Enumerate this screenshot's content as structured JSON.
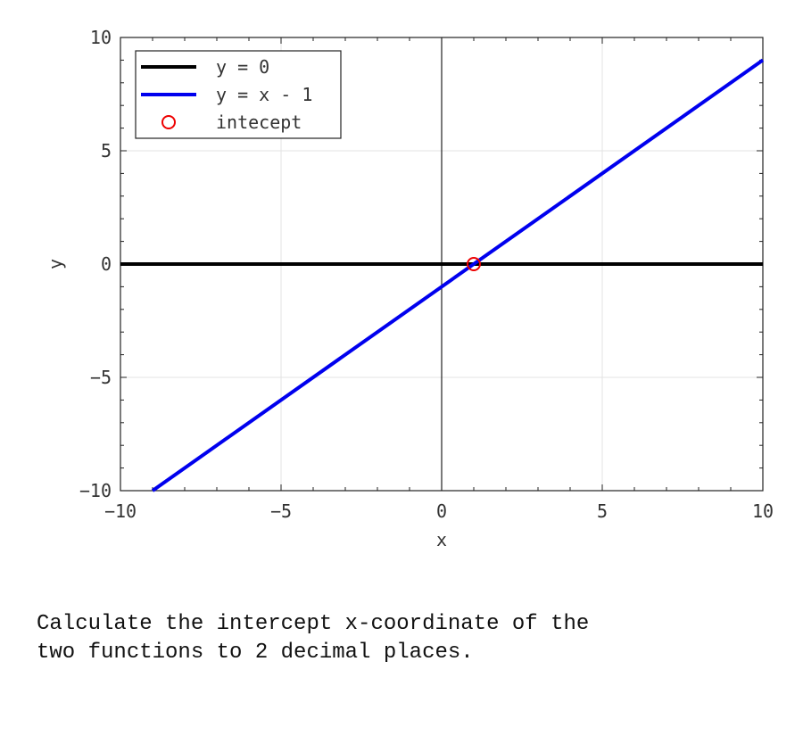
{
  "chart_data": {
    "type": "line",
    "title": "",
    "xlabel": "x",
    "ylabel": "y",
    "xlim": [
      -10,
      10
    ],
    "ylim": [
      -10,
      10
    ],
    "xticks": [
      -10,
      -5,
      0,
      5,
      10
    ],
    "yticks": [
      -10,
      -5,
      0,
      5,
      10
    ],
    "xtick_labels": [
      "−10",
      "−5",
      "0",
      "5",
      "10"
    ],
    "ytick_labels": [
      "−10",
      "−5",
      "0",
      "5",
      "10"
    ],
    "grid": true,
    "legend_position": "top-left",
    "series": [
      {
        "name": "y = 0",
        "color": "#000000",
        "x": [
          -10,
          10
        ],
        "y": [
          0,
          0
        ]
      },
      {
        "name": "y = x - 1",
        "color": "#0000ee",
        "x": [
          -9,
          10
        ],
        "y": [
          -10,
          9
        ]
      }
    ],
    "markers": [
      {
        "name": "intecept",
        "color": "#ee0000",
        "marker": "open-circle",
        "x": 1,
        "y": 0
      }
    ]
  },
  "question": "Calculate the intercept x-coordinate of the\ntwo functions to 2 decimal places."
}
